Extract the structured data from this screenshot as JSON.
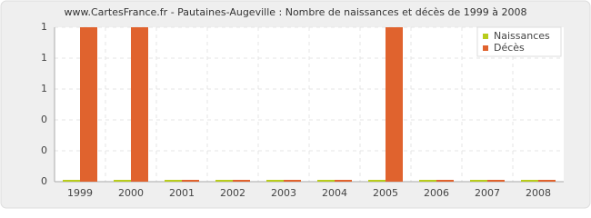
{
  "chart_data": {
    "type": "bar",
    "title": "www.CartesFrance.fr - Pautaines-Augeville : Nombre de naissances et décès de 1999 à 2008",
    "categories": [
      "1999",
      "2000",
      "2001",
      "2002",
      "2003",
      "2004",
      "2005",
      "2006",
      "2007",
      "2008"
    ],
    "series": [
      {
        "name": "Naissances",
        "color": "#b8cc1c",
        "values": [
          0,
          0,
          0,
          0,
          0,
          0,
          0,
          0,
          0,
          0
        ]
      },
      {
        "name": "Décès",
        "color": "#e0632e",
        "values": [
          1,
          1,
          0,
          0,
          0,
          0,
          1,
          0,
          0,
          0
        ]
      }
    ],
    "ylim": [
      0,
      1
    ],
    "yticks": [
      0,
      {
        "value": 0.2,
        "label": "0"
      },
      {
        "value": 0.4,
        "label": "0"
      },
      {
        "value": 0.6,
        "label": "1"
      },
      {
        "value": 0.8,
        "label": "1"
      },
      1
    ],
    "grid": true,
    "legend": "top-right"
  }
}
